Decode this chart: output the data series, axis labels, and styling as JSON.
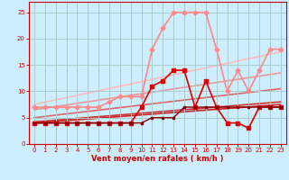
{
  "background_color": "#cceeff",
  "grid_color": "#aacccc",
  "xlabel": "Vent moyen/en rafales ( km/h )",
  "xlabel_color": "#cc0000",
  "tick_color": "#cc0000",
  "xlim": [
    -0.5,
    23.5
  ],
  "ylim": [
    0,
    27
  ],
  "yticks": [
    0,
    5,
    10,
    15,
    20,
    25
  ],
  "xticks": [
    0,
    1,
    2,
    3,
    4,
    5,
    6,
    7,
    8,
    9,
    10,
    11,
    12,
    13,
    14,
    15,
    16,
    17,
    18,
    19,
    20,
    21,
    22,
    23
  ],
  "line_dark_x": [
    0,
    1,
    2,
    3,
    4,
    5,
    6,
    7,
    8,
    9,
    10,
    11,
    12,
    13,
    14,
    15,
    16,
    17,
    18,
    19,
    20,
    21,
    22,
    23
  ],
  "line_dark_y": [
    4,
    4,
    4,
    4,
    4,
    4,
    4,
    4,
    4,
    4,
    4,
    5,
    5,
    5,
    7,
    7,
    7,
    7,
    7,
    7,
    7,
    7,
    7,
    7
  ],
  "line_dark_color": "#880000",
  "line_dark_lw": 1.0,
  "line_dark_marker": "s",
  "line_dark_markersize": 2,
  "line_red_x": [
    0,
    1,
    2,
    3,
    4,
    5,
    6,
    7,
    8,
    9,
    10,
    11,
    12,
    13,
    14,
    15,
    16,
    17,
    18,
    19,
    20,
    21,
    22,
    23
  ],
  "line_red_y": [
    4,
    4,
    4,
    4,
    4,
    4,
    4,
    4,
    4,
    4,
    7,
    11,
    12,
    14,
    14,
    7,
    12,
    7,
    4,
    4,
    3,
    7,
    7,
    7
  ],
  "line_red_color": "#dd0000",
  "line_red_lw": 1.2,
  "line_red_marker": "s",
  "line_red_markersize": 2.5,
  "line_pink_x": [
    0,
    1,
    2,
    3,
    4,
    5,
    6,
    7,
    8,
    9,
    10,
    11,
    12,
    13,
    14,
    15,
    16,
    17,
    18,
    19,
    20,
    21,
    22,
    23
  ],
  "line_pink_y": [
    7,
    7,
    7,
    7,
    7,
    7,
    7,
    8,
    9,
    9,
    9,
    18,
    22,
    25,
    25,
    25,
    25,
    18,
    10,
    14,
    10,
    14,
    18,
    18
  ],
  "line_pink_color": "#ff8888",
  "line_pink_lw": 1.2,
  "line_pink_marker": "D",
  "line_pink_markersize": 2.5,
  "trend_lines": [
    {
      "x": [
        0,
        23
      ],
      "y": [
        4.0,
        7.5
      ],
      "color": "#cc2222",
      "lw": 1.2
    },
    {
      "x": [
        0,
        23
      ],
      "y": [
        4.2,
        8.0
      ],
      "color": "#cc3333",
      "lw": 1.2
    },
    {
      "x": [
        0,
        23
      ],
      "y": [
        5.0,
        10.5
      ],
      "color": "#dd6666",
      "lw": 1.2
    },
    {
      "x": [
        0,
        23
      ],
      "y": [
        6.5,
        13.5
      ],
      "color": "#ee9999",
      "lw": 1.2
    },
    {
      "x": [
        0,
        23
      ],
      "y": [
        7.5,
        17.5
      ],
      "color": "#ffbbbb",
      "lw": 1.2
    }
  ]
}
